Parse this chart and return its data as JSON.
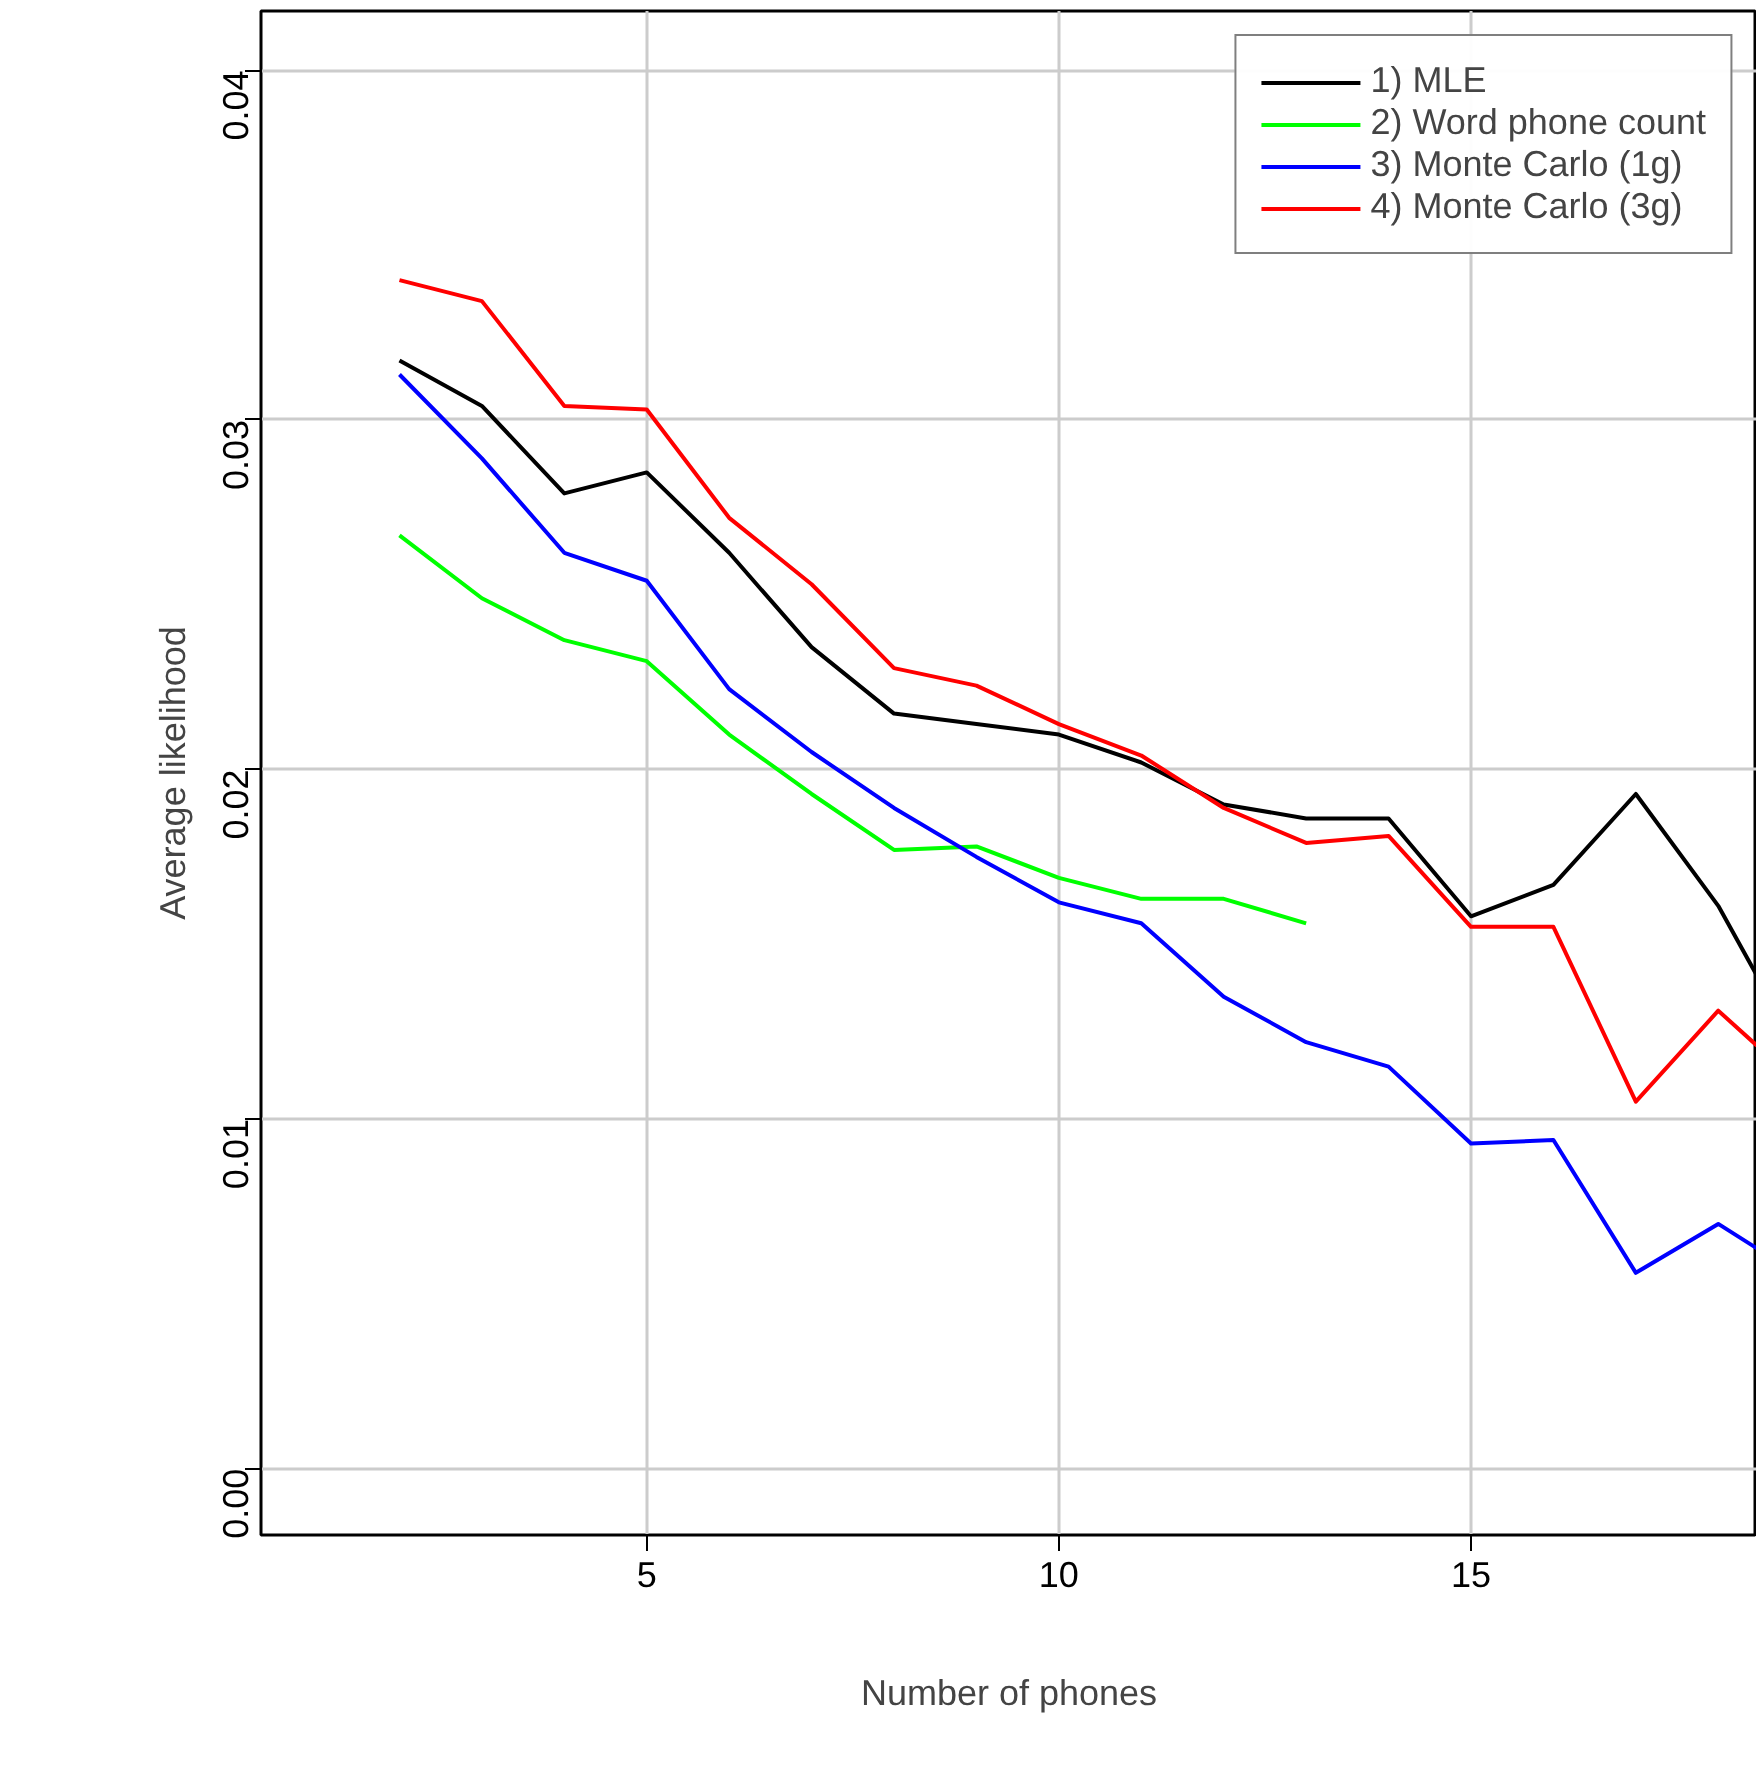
{
  "chart_data": {
    "type": "line",
    "xlabel": "Number of phones",
    "ylabel": "Average likelihood",
    "xlim": [
      0.32,
      18.47
    ],
    "ylim": [
      -0.0019,
      0.0417
    ],
    "xticks": [
      5,
      10,
      15
    ],
    "yticks": [
      {
        "value": 0,
        "label": "0.00"
      },
      {
        "value": 0.01,
        "label": "0.01"
      },
      {
        "value": 0.02,
        "label": "0.02"
      },
      {
        "value": 0.03,
        "label": "0.03"
      },
      {
        "value": 0.04,
        "label": "0.04"
      }
    ],
    "grid": true,
    "legend": "top right",
    "line_style": "solid",
    "marker": "none",
    "series": [
      {
        "name": "1) MLE",
        "color": "#000000",
        "x": [
          2,
          3,
          4,
          5,
          6,
          7,
          8,
          9,
          10,
          11,
          12,
          13,
          14,
          15,
          16,
          17,
          18,
          18.47
        ],
        "values": [
          0.0317,
          0.0304,
          0.0279,
          0.0285,
          0.0262,
          0.0235,
          0.0216,
          0.0213,
          0.021,
          0.0202,
          0.019,
          0.0186,
          0.0186,
          0.0158,
          0.0167,
          0.0193,
          0.0161,
          0.0141
        ]
      },
      {
        "name": "2) Word phone count",
        "color": "#00ff00",
        "x": [
          2,
          3,
          4,
          5,
          6,
          7,
          8,
          9,
          10,
          11,
          12,
          13
        ],
        "values": [
          0.0267,
          0.0249,
          0.0237,
          0.0231,
          0.021,
          0.0193,
          0.0177,
          0.0178,
          0.0169,
          0.0163,
          0.0163,
          0.0156
        ]
      },
      {
        "name": "3) Monte Carlo (1g)",
        "color": "#0000ff",
        "x": [
          2,
          3,
          4,
          5,
          6,
          7,
          8,
          9,
          10,
          11,
          12,
          13,
          14,
          15,
          16,
          17,
          18,
          18.47
        ],
        "values": [
          0.0313,
          0.0289,
          0.0262,
          0.0254,
          0.0223,
          0.0205,
          0.0189,
          0.0175,
          0.0162,
          0.0156,
          0.0135,
          0.0122,
          0.0115,
          0.0093,
          0.0094,
          0.0056,
          0.007,
          0.0063
        ]
      },
      {
        "name": "4) Monte Carlo (3g)",
        "color": "#ff0000",
        "x": [
          2,
          3,
          4,
          5,
          6,
          7,
          8,
          9,
          10,
          11,
          12,
          13,
          14,
          15,
          16,
          17,
          18,
          18.47
        ],
        "values": [
          0.034,
          0.0334,
          0.0304,
          0.0303,
          0.0272,
          0.0253,
          0.0229,
          0.0224,
          0.0213,
          0.0204,
          0.0189,
          0.0179,
          0.0181,
          0.0155,
          0.0155,
          0.0105,
          0.0131,
          0.0121
        ]
      }
    ]
  }
}
